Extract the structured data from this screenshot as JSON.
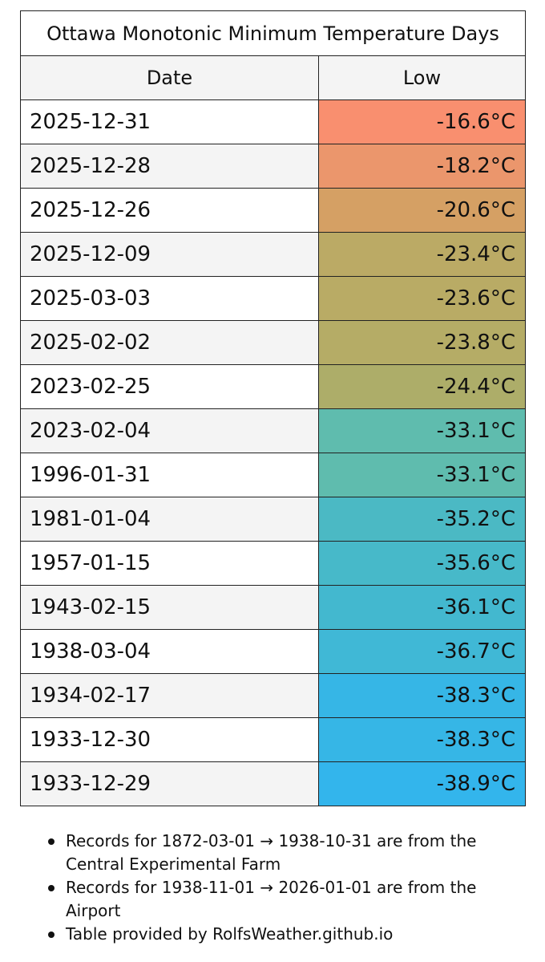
{
  "table": {
    "title": "Ottawa Monotonic Minimum Temperature Days",
    "columns": [
      "Date",
      "Low"
    ],
    "rows": [
      {
        "date": "2025-12-31",
        "low": "-16.6°C",
        "color": "#f98f6f"
      },
      {
        "date": "2025-12-28",
        "low": "-18.2°C",
        "color": "#eb966c"
      },
      {
        "date": "2025-12-26",
        "low": "-20.6°C",
        "color": "#d5a064"
      },
      {
        "date": "2025-12-09",
        "low": "-23.4°C",
        "color": "#bbaa65"
      },
      {
        "date": "2025-03-03",
        "low": "-23.6°C",
        "color": "#b9ab65"
      },
      {
        "date": "2025-02-02",
        "low": "-23.8°C",
        "color": "#b5ac66"
      },
      {
        "date": "2023-02-25",
        "low": "-24.4°C",
        "color": "#adad69"
      },
      {
        "date": "2023-02-04",
        "low": "-33.1°C",
        "color": "#5fbcae"
      },
      {
        "date": "1996-01-31",
        "low": "-33.1°C",
        "color": "#5fbcae"
      },
      {
        "date": "1981-01-04",
        "low": "-35.2°C",
        "color": "#4bb9c4"
      },
      {
        "date": "1957-01-15",
        "low": "-35.6°C",
        "color": "#47b9c9"
      },
      {
        "date": "1943-02-15",
        "low": "-36.1°C",
        "color": "#43b8cf"
      },
      {
        "date": "1938-03-04",
        "low": "-36.7°C",
        "color": "#40b8d6"
      },
      {
        "date": "1934-02-17",
        "low": "-38.3°C",
        "color": "#36b6e6"
      },
      {
        "date": "1933-12-30",
        "low": "-38.3°C",
        "color": "#36b6e6"
      },
      {
        "date": "1933-12-29",
        "low": "-38.9°C",
        "color": "#33b5ec"
      }
    ]
  },
  "notes": [
    "Records for 1872-03-01 → 1938-10-31 are from the Central Experimental Farm",
    "Records for 1938-11-01 → 2026-01-01 are from the Airport",
    "Table provided by RolfsWeather.github.io"
  ]
}
